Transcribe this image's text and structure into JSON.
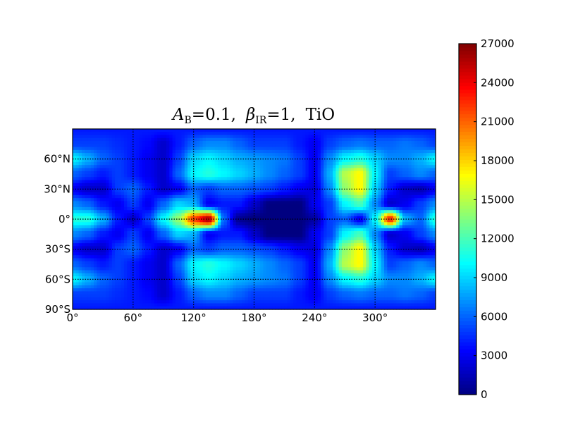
{
  "chart_data": {
    "type": "heatmap",
    "title": {
      "A": "A",
      "A_sub": "B",
      "A_val": "=0.1,",
      "beta": "β",
      "beta_sub": "IR",
      "beta_val": "=1,",
      "species": "TiO"
    },
    "x_range": [
      0,
      360
    ],
    "y_range": [
      -90,
      90
    ],
    "x_ticks": [
      0,
      60,
      120,
      180,
      240,
      300
    ],
    "x_tick_labels": [
      "0°",
      "60°",
      "120°",
      "180°",
      "240°",
      "300°"
    ],
    "y_ticks": [
      60,
      30,
      0,
      -30,
      -60,
      -90
    ],
    "y_tick_labels": [
      "60°N",
      "30°N",
      "0°",
      "30°S",
      "60°S",
      "90°S"
    ],
    "grid": true,
    "colormap": "jet",
    "colorbar": {
      "range": [
        0,
        27000
      ],
      "ticks": [
        0,
        3000,
        6000,
        9000,
        12000,
        15000,
        18000,
        21000,
        24000,
        27000
      ],
      "tick_labels": [
        "0",
        "3000",
        "6000",
        "9000",
        "12000",
        "15000",
        "18000",
        "21000",
        "24000",
        "27000"
      ],
      "placement": "right"
    },
    "grid_lon": [
      0,
      15,
      30,
      45,
      60,
      75,
      90,
      105,
      120,
      135,
      150,
      165,
      180,
      195,
      210,
      225,
      240,
      255,
      270,
      285,
      300,
      315,
      330,
      345,
      360
    ],
    "grid_lat": [
      90,
      75,
      60,
      45,
      30,
      15,
      0,
      -15,
      -30,
      -45,
      -60,
      -75,
      -90
    ],
    "values": [
      [
        4000,
        4000,
        4000,
        4000,
        4000,
        4000,
        4000,
        4000,
        4000,
        4000,
        4000,
        4000,
        4000,
        4000,
        4000,
        4000,
        4000,
        4000,
        4000,
        4000,
        4000,
        4000,
        4000,
        4000,
        4000
      ],
      [
        5000,
        5000,
        5000,
        4500,
        4000,
        3500,
        2000,
        4000,
        6000,
        7000,
        7000,
        6000,
        5000,
        5000,
        5000,
        4000,
        3000,
        5000,
        6000,
        6500,
        6000,
        6000,
        6500,
        6000,
        5000
      ],
      [
        10000,
        8000,
        6000,
        5000,
        4000,
        3000,
        2000,
        5000,
        9000,
        10000,
        9000,
        8000,
        7500,
        7000,
        6500,
        5000,
        3000,
        7000,
        10000,
        11000,
        9000,
        7000,
        7000,
        8000,
        10000
      ],
      [
        6000,
        5000,
        4000,
        5000,
        4000,
        3000,
        2000,
        6000,
        10000,
        11000,
        10000,
        9000,
        8000,
        7000,
        6000,
        5000,
        3000,
        8000,
        15000,
        17000,
        10000,
        5000,
        6000,
        7000,
        6000
      ],
      [
        3000,
        2000,
        2000,
        5000,
        6000,
        4000,
        2000,
        3000,
        6000,
        5000,
        6000,
        6000,
        5500,
        5000,
        4000,
        3000,
        2500,
        7000,
        14000,
        17000,
        9000,
        4000,
        2000,
        1500,
        3000
      ],
      [
        7000,
        6000,
        4000,
        3000,
        5000,
        3000,
        6000,
        9000,
        8000,
        3000,
        4000,
        4000,
        2000,
        0,
        0,
        0,
        3000,
        5000,
        10000,
        12000,
        7000,
        2000,
        3000,
        5000,
        7000
      ],
      [
        11000,
        11000,
        8000,
        4000,
        2000,
        5000,
        10000,
        14000,
        22000,
        26000,
        6000,
        500,
        0,
        0,
        0,
        0,
        1000,
        5000,
        6000,
        3000,
        10000,
        23000,
        8000,
        6000,
        11000
      ],
      [
        7000,
        6000,
        4000,
        3000,
        5000,
        3000,
        6000,
        9000,
        8000,
        3000,
        4000,
        4000,
        2000,
        0,
        0,
        0,
        3000,
        5000,
        10000,
        12000,
        7000,
        2000,
        3000,
        5000,
        7000
      ],
      [
        3000,
        2000,
        2000,
        5000,
        6000,
        4000,
        2000,
        3000,
        6000,
        5000,
        6000,
        6000,
        5500,
        5000,
        4000,
        3000,
        2500,
        7000,
        14000,
        17000,
        9000,
        4000,
        2000,
        1500,
        3000
      ],
      [
        6000,
        5000,
        4000,
        5000,
        4000,
        3000,
        2000,
        6000,
        10000,
        11000,
        10000,
        9000,
        8000,
        7000,
        6000,
        5000,
        3000,
        8000,
        15000,
        17000,
        10000,
        5000,
        6000,
        7000,
        6000
      ],
      [
        10000,
        8000,
        6000,
        5000,
        4000,
        3000,
        2000,
        5000,
        9000,
        10000,
        9000,
        8000,
        7500,
        7000,
        6500,
        5000,
        3000,
        7000,
        10000,
        11000,
        9000,
        7000,
        7000,
        8000,
        10000
      ],
      [
        5000,
        5000,
        5000,
        4500,
        4000,
        3500,
        2000,
        4000,
        6000,
        7000,
        7000,
        6000,
        5000,
        5000,
        5000,
        4000,
        3000,
        5000,
        6000,
        6500,
        6000,
        6000,
        6500,
        6000,
        5000
      ],
      [
        4000,
        4000,
        4000,
        4000,
        4000,
        4000,
        4000,
        4000,
        4000,
        4000,
        4000,
        4000,
        4000,
        4000,
        4000,
        4000,
        4000,
        4000,
        4000,
        4000,
        4000,
        4000,
        4000,
        4000,
        4000
      ]
    ]
  }
}
